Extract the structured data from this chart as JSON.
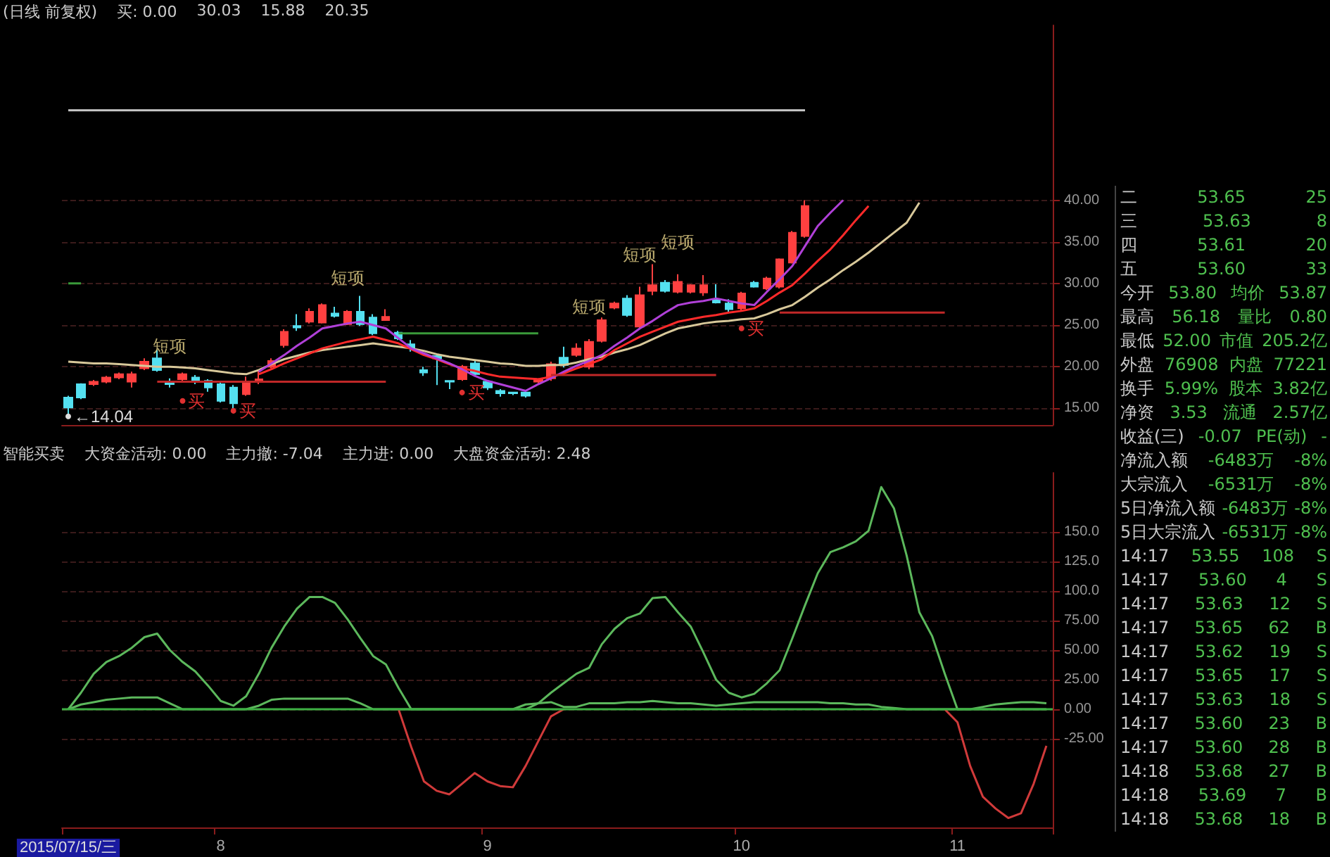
{
  "chart_data": [
    {
      "type": "candlestick",
      "title": "(日线 前复权)",
      "annotations": [
        "买: 0.00",
        "30.03",
        "15.88",
        "20.35"
      ],
      "categories": [
        null,
        null,
        null,
        null,
        null,
        null,
        null,
        null,
        null,
        null,
        null,
        null,
        null,
        null,
        null,
        null,
        null,
        null,
        null,
        null,
        null,
        null,
        null,
        null,
        null,
        null,
        null,
        null,
        null,
        null,
        null,
        null,
        null,
        null,
        null,
        null,
        null,
        null,
        null,
        null,
        null,
        null,
        null,
        null,
        null,
        null,
        null,
        null,
        null,
        null,
        null,
        null,
        null,
        null,
        null,
        null,
        null,
        null,
        null,
        null,
        null,
        null,
        null,
        null,
        null,
        null,
        null,
        null,
        null,
        null,
        null,
        null,
        null,
        null,
        null,
        null,
        null,
        null
      ],
      "colors": [
        "#54e0f0",
        "#54e0f0",
        "#ff4040",
        "#ff4040",
        "#ff4040",
        "#ff4040",
        "#ff4040",
        "#54e0f0",
        "#54e0f0",
        "#ff4040",
        "#54e0f0",
        "#54e0f0",
        "#54e0f0",
        "#54e0f0",
        "#ff4040",
        "#ff4040",
        "#ff4040",
        "#ff4040",
        "#54e0f0",
        "#ff4040",
        "#ff4040",
        "#54e0f0",
        "#ff4040",
        "#54e0f0",
        "#54e0f0",
        "#ff4040",
        "#54e0f0",
        "#54e0f0",
        "#54e0f0",
        "#54e0f0",
        "#54e0f0",
        "#ff4040",
        "#54e0f0",
        "#54e0f0",
        "#54e0f0",
        "#54e0f0",
        "#54e0f0",
        "#ff4040",
        "#ff4040",
        "#54e0f0",
        "#ff4040",
        "#ff4040",
        "#ff4040",
        "#ff4040",
        "#54e0f0",
        "#ff4040",
        "#ff4040",
        "#54e0f0",
        "#ff4040",
        "#ff4040",
        "#ff4040",
        "#54e0f0",
        "#54e0f0",
        "#ff4040",
        "#54e0f0",
        "#ff4040",
        "#ff4040",
        "#ff4040",
        "#ff4040",
        null,
        null,
        null,
        null,
        null,
        null,
        null,
        null,
        null,
        null,
        null,
        null,
        null,
        null,
        null,
        null,
        null,
        null,
        null
      ],
      "ohlc": [
        [
          16.3,
          16.5,
          14.04,
          15.1
        ],
        [
          17.9,
          18.0,
          16.1,
          16.3
        ],
        [
          17.9,
          18.4,
          17.7,
          18.2
        ],
        [
          18.2,
          18.9,
          18.0,
          18.7
        ],
        [
          18.7,
          19.3,
          18.5,
          19.1
        ],
        [
          18.2,
          19.4,
          17.5,
          19.1
        ],
        [
          19.8,
          21.0,
          19.6,
          20.6
        ],
        [
          21.0,
          22.0,
          19.4,
          19.6
        ],
        [
          18.2,
          18.6,
          17.5,
          17.9
        ],
        [
          18.5,
          19.3,
          18.3,
          19.1
        ],
        [
          18.7,
          19.0,
          17.9,
          18.2
        ],
        [
          18.3,
          18.5,
          17.0,
          17.5
        ],
        [
          17.9,
          18.3,
          15.7,
          15.9
        ],
        [
          17.5,
          17.8,
          14.9,
          15.6
        ],
        [
          16.7,
          18.8,
          16.5,
          18.2
        ],
        [
          18.2,
          19.5,
          17.9,
          18.5
        ],
        [
          20.0,
          21.0,
          19.8,
          20.7
        ],
        [
          22.6,
          24.5,
          22.3,
          24.2
        ],
        [
          24.9,
          26.3,
          24.3,
          24.7
        ],
        [
          25.4,
          27.0,
          25.2,
          26.6
        ],
        [
          25.3,
          27.6,
          25.2,
          27.4
        ],
        [
          26.4,
          27.2,
          25.9,
          26.1
        ],
        [
          25.1,
          26.8,
          25.0,
          26.6
        ],
        [
          26.6,
          28.5,
          24.9,
          25.1
        ],
        [
          25.9,
          26.3,
          23.8,
          24.0
        ],
        [
          25.6,
          26.9,
          25.5,
          26.0
        ],
        [
          24.1,
          24.3,
          23.2,
          23.4
        ],
        [
          22.7,
          23.2,
          21.8,
          22.3
        ],
        [
          19.6,
          20.0,
          18.9,
          19.3
        ],
        [
          21.3,
          21.5,
          17.8,
          21.0
        ],
        [
          18.3,
          18.3,
          17.3,
          18.2
        ],
        [
          18.5,
          20.2,
          18.3,
          20.0
        ],
        [
          20.4,
          20.7,
          18.8,
          19.1
        ],
        [
          18.2,
          18.4,
          17.2,
          17.5
        ],
        [
          17.1,
          17.3,
          16.4,
          16.8
        ],
        [
          16.9,
          17.0,
          16.6,
          16.8
        ],
        [
          16.9,
          17.0,
          16.3,
          16.5
        ],
        [
          18.2,
          18.6,
          18.0,
          18.5
        ],
        [
          18.6,
          20.6,
          18.3,
          20.3
        ],
        [
          21.1,
          22.4,
          19.9,
          20.2
        ],
        [
          21.4,
          22.8,
          21.2,
          22.2
        ],
        [
          20.0,
          23.3,
          19.7,
          23.0
        ],
        [
          23.1,
          25.9,
          22.9,
          25.6
        ],
        [
          27.1,
          27.8,
          26.9,
          27.6
        ],
        [
          28.2,
          28.6,
          26.0,
          26.2
        ],
        [
          24.8,
          29.6,
          24.6,
          28.6
        ],
        [
          29.1,
          32.3,
          28.6,
          29.8
        ],
        [
          30.1,
          30.4,
          28.9,
          29.1
        ],
        [
          29.0,
          31.1,
          28.8,
          30.2
        ],
        [
          29.0,
          29.9,
          28.8,
          29.8
        ],
        [
          28.9,
          31.0,
          28.5,
          29.8
        ],
        [
          28.1,
          29.9,
          27.6,
          27.7
        ],
        [
          27.6,
          28.1,
          26.5,
          26.9
        ],
        [
          27.0,
          29.0,
          26.6,
          28.8
        ],
        [
          30.1,
          30.3,
          29.5,
          29.6
        ],
        [
          29.4,
          30.8,
          29.2,
          30.6
        ],
        [
          29.6,
          33.0,
          29.4,
          32.9
        ],
        [
          32.5,
          36.3,
          32.4,
          36.1
        ],
        [
          35.7,
          40.0,
          35.5,
          39.3
        ],
        null,
        null,
        null,
        null,
        null,
        null,
        null,
        null,
        null,
        null,
        null,
        null,
        null,
        null,
        null,
        null,
        null,
        null,
        null
      ],
      "value_labels": [
        null,
        null,
        null,
        null,
        null,
        null,
        null,
        null,
        "短项",
        null,
        null,
        null,
        null,
        null,
        null,
        null,
        null,
        null,
        null,
        null,
        null,
        null,
        "短项",
        null,
        null,
        null,
        null,
        null,
        null,
        null,
        null,
        null,
        null,
        null,
        null,
        null,
        null,
        null,
        null,
        null,
        null,
        "短项",
        null,
        null,
        null,
        "短项",
        null,
        null,
        "短项",
        null,
        null,
        null,
        null,
        null,
        null,
        null,
        null,
        null,
        null,
        null,
        null,
        null,
        null,
        null,
        null,
        null,
        null,
        null,
        null,
        null,
        null,
        null,
        null,
        null,
        null,
        null,
        null,
        null
      ],
      "series": [
        {
          "type": "line",
          "color": "#d8c89a",
          "values": [
            20.6,
            20.5,
            20.4,
            20.4,
            20.3,
            20.2,
            20.1,
            20.0,
            20.0,
            19.9,
            19.8,
            19.6,
            19.4,
            19.2,
            19.1,
            19.6,
            20.3,
            20.9,
            21.3,
            21.7,
            22.0,
            22.2,
            22.4,
            22.6,
            22.8,
            22.6,
            22.4,
            22.2,
            21.9,
            21.5,
            21.2,
            21.0,
            20.8,
            20.6,
            20.4,
            20.3,
            20.1,
            20.1,
            20.2,
            20.2,
            20.5,
            20.9,
            21.2,
            21.7,
            22.1,
            22.6,
            23.3,
            24.0,
            24.6,
            24.9,
            25.2,
            25.4,
            25.5,
            25.7,
            25.8,
            26.3,
            26.9,
            27.4,
            28.4,
            29.5,
            30.5,
            31.6,
            32.6,
            33.7,
            34.9,
            36.1,
            37.3,
            39.7,
            null,
            null,
            null,
            null,
            null,
            null,
            null,
            null,
            null,
            null
          ]
        },
        {
          "type": "line",
          "color": "#ff2a2a",
          "values": [
            null,
            null,
            null,
            null,
            null,
            null,
            null,
            null,
            null,
            null,
            null,
            null,
            null,
            null,
            null,
            19.1,
            19.7,
            20.4,
            21.0,
            21.6,
            22.2,
            22.6,
            23.0,
            23.3,
            23.6,
            23.2,
            22.8,
            22.1,
            21.4,
            20.9,
            20.3,
            19.8,
            19.5,
            19.1,
            18.8,
            18.7,
            18.6,
            18.5,
            18.8,
            19.2,
            19.8,
            20.3,
            20.9,
            22.0,
            22.8,
            23.6,
            24.2,
            24.8,
            25.4,
            25.7,
            26.0,
            26.2,
            26.5,
            26.7,
            27.0,
            27.9,
            28.9,
            29.8,
            31.2,
            32.7,
            34.1,
            35.8,
            37.6,
            39.3,
            null,
            null,
            null,
            null,
            null,
            null,
            null,
            null,
            null,
            null,
            null,
            null,
            null,
            null
          ]
        },
        {
          "type": "line",
          "color": "#b040d8",
          "values": [
            null,
            null,
            null,
            null,
            null,
            null,
            null,
            null,
            null,
            null,
            null,
            null,
            null,
            null,
            null,
            19.4,
            20.4,
            21.4,
            22.5,
            23.5,
            24.6,
            24.9,
            25.2,
            25.4,
            25.0,
            24.6,
            23.4,
            22.2,
            21.6,
            21.0,
            20.4,
            19.7,
            18.9,
            18.3,
            17.9,
            17.5,
            17.1,
            17.9,
            18.6,
            19.4,
            20.1,
            20.7,
            21.4,
            22.5,
            23.5,
            24.6,
            25.5,
            26.5,
            27.4,
            27.7,
            27.9,
            28.2,
            27.9,
            27.6,
            27.4,
            29.0,
            30.5,
            32.1,
            34.5,
            36.9,
            38.5,
            40.0,
            null,
            null,
            null,
            null,
            null,
            null,
            null,
            null,
            null,
            null,
            null,
            null,
            null,
            null,
            null,
            null
          ]
        },
        {
          "type": "line",
          "color": "#c8c8c8",
          "values": [
            50.8,
            50.8,
            50.8,
            50.8,
            50.8,
            50.8,
            50.8,
            50.8,
            50.8,
            50.8,
            50.8,
            50.8,
            50.8,
            50.8,
            50.8,
            50.8,
            50.8,
            50.8,
            50.8,
            50.8,
            50.8,
            50.8,
            50.8,
            50.8,
            50.8,
            50.8,
            50.8,
            50.8,
            50.8,
            50.8,
            50.8,
            50.8,
            50.8,
            50.8,
            50.8,
            50.8,
            50.8,
            50.8,
            50.8,
            50.8,
            50.8,
            50.8,
            50.8,
            50.8,
            50.8,
            50.8,
            50.8,
            50.8,
            50.8,
            50.8,
            50.8,
            50.8,
            50.8,
            50.8,
            50.8,
            50.8,
            50.8,
            50.8,
            50.8,
            null,
            null,
            null,
            null,
            null,
            null,
            null,
            null,
            null,
            null,
            null,
            null,
            null,
            null,
            null,
            null,
            null,
            null,
            null
          ]
        },
        {
          "type": "line",
          "color": "#c02828",
          "values": [
            null,
            null,
            null,
            null,
            null,
            null,
            null,
            18.2,
            18.2,
            18.2,
            18.2,
            18.2,
            18.2,
            18.2,
            18.2,
            18.2,
            18.2,
            18.2,
            18.2,
            18.2,
            18.2,
            18.2,
            18.2,
            18.2,
            18.2,
            18.2,
            null,
            null,
            null,
            null,
            null,
            null,
            null,
            null,
            null,
            null,
            null,
            null,
            19.0,
            19.0,
            19.0,
            19.0,
            19.0,
            19.0,
            19.0,
            19.0,
            19.0,
            19.0,
            19.0,
            19.0,
            19.0,
            19.0,
            null,
            null,
            null,
            null,
            26.5,
            26.5,
            26.5,
            26.5,
            26.5,
            26.5,
            26.5,
            26.5,
            26.5,
            26.5,
            26.5,
            26.5,
            26.5,
            26.5,
            null,
            null,
            null,
            null,
            null,
            null,
            null,
            null
          ]
        },
        {
          "type": "line",
          "color": "#3a9a3a",
          "values": [
            30.0,
            30.0,
            null,
            null,
            null,
            null,
            null,
            null,
            null,
            null,
            null,
            null,
            null,
            null,
            null,
            null,
            null,
            null,
            null,
            null,
            null,
            null,
            null,
            null,
            null,
            null,
            24.0,
            24.0,
            24.0,
            24.0,
            24.0,
            24.0,
            24.0,
            24.0,
            24.0,
            24.0,
            24.0,
            24.0,
            null,
            null,
            null,
            null,
            null,
            null,
            null,
            null,
            null,
            null,
            null,
            null,
            null,
            null,
            null,
            null,
            null,
            null,
            null,
            null,
            null,
            null,
            null,
            null,
            null,
            null,
            null,
            null,
            null,
            null,
            null,
            null,
            null,
            null,
            null,
            null,
            null,
            null,
            null,
            null
          ]
        },
        {
          "type": "scatter",
          "color": "#e03030",
          "marker": "circle",
          "values": [
            null,
            null,
            null,
            null,
            null,
            null,
            null,
            null,
            null,
            15.9,
            null,
            null,
            null,
            14.7,
            null,
            null,
            null,
            null,
            null,
            null,
            null,
            null,
            null,
            null,
            null,
            null,
            null,
            null,
            null,
            null,
            null,
            16.9,
            null,
            null,
            null,
            null,
            null,
            null,
            null,
            null,
            null,
            null,
            null,
            null,
            null,
            null,
            null,
            null,
            null,
            null,
            null,
            null,
            null,
            24.6,
            null,
            null,
            null,
            null,
            null,
            null,
            null,
            null,
            null,
            null,
            null,
            null,
            null,
            null,
            null,
            null,
            null,
            null,
            null,
            null,
            null,
            null,
            null,
            null
          ],
          "value_labels": [
            null,
            null,
            null,
            null,
            null,
            null,
            null,
            null,
            null,
            "买",
            null,
            null,
            null,
            "买",
            null,
            null,
            null,
            null,
            null,
            null,
            null,
            null,
            null,
            null,
            null,
            null,
            null,
            null,
            null,
            null,
            null,
            "买",
            null,
            null,
            null,
            null,
            null,
            null,
            null,
            null,
            null,
            null,
            null,
            null,
            null,
            null,
            null,
            null,
            null,
            null,
            null,
            null,
            null,
            "买",
            null,
            null,
            null,
            null,
            null,
            null,
            null,
            null,
            null,
            null,
            null,
            null,
            null,
            null,
            null,
            null,
            null,
            null,
            null,
            null,
            null,
            null,
            null,
            null
          ]
        },
        {
          "type": "scatter",
          "color": "#dddddd",
          "marker": "circle",
          "values": [
            14.04,
            null,
            null,
            null,
            null,
            null,
            null,
            null,
            null,
            null,
            null,
            null,
            null,
            null,
            null,
            null,
            null,
            null,
            null,
            null,
            null,
            null,
            null,
            null,
            null,
            null,
            null,
            null,
            null,
            null,
            null,
            null,
            null,
            null,
            null,
            null,
            null,
            null,
            null,
            null,
            null,
            null,
            null,
            null,
            null,
            null,
            null,
            null,
            null,
            null,
            null,
            null,
            null,
            null,
            null,
            null,
            null,
            null,
            null,
            null,
            null,
            null,
            null,
            null,
            null,
            null,
            null,
            null,
            null,
            null,
            null,
            null,
            null,
            null,
            null,
            null,
            null,
            null
          ],
          "value_labels": [
            "←14.04",
            null,
            null,
            null,
            null,
            null,
            null,
            null,
            null,
            null,
            null,
            null,
            null,
            null,
            null,
            null,
            null,
            null,
            null,
            null,
            null,
            null,
            null,
            null,
            null,
            null,
            null,
            null,
            null,
            null,
            null,
            null,
            null,
            null,
            null,
            null,
            null,
            null,
            null,
            null,
            null,
            null,
            null,
            null,
            null,
            null,
            null,
            null,
            null,
            null,
            null,
            null,
            null,
            null,
            null,
            null,
            null,
            null,
            null,
            null,
            null,
            null,
            null,
            null,
            null,
            null,
            null,
            null,
            null,
            null,
            null,
            null,
            null,
            null,
            null,
            null,
            null,
            null
          ]
        }
      ],
      "marker": "none",
      "ylim": [
        13,
        61
      ],
      "yticks": [
        {
          "value": 15,
          "label": "15.00"
        },
        {
          "value": 20,
          "label": "20.00"
        },
        {
          "value": 25,
          "label": "25.00"
        },
        {
          "value": 30,
          "label": "30.00"
        },
        {
          "value": 35,
          "label": "35.00"
        },
        {
          "value": 40,
          "label": "40.00"
        }
      ],
      "grid": "y",
      "tick_labels": "y"
    },
    {
      "type": "line",
      "title": "智能买卖",
      "annotations": [
        "大资金活动: 0.00",
        "主力撤: -7.04",
        "主力进: 0.00",
        "大盘资金活动: 2.48"
      ],
      "categories": [
        "2015/07/15/三",
        null,
        null,
        null,
        null,
        null,
        null,
        null,
        null,
        null,
        null,
        null,
        "8",
        null,
        null,
        null,
        null,
        null,
        null,
        null,
        null,
        null,
        null,
        null,
        null,
        null,
        null,
        null,
        null,
        null,
        null,
        null,
        null,
        "9",
        null,
        null,
        null,
        null,
        null,
        null,
        null,
        null,
        null,
        null,
        null,
        null,
        null,
        null,
        null,
        null,
        null,
        null,
        null,
        "10",
        null,
        null,
        null,
        null,
        null,
        null,
        null,
        null,
        null,
        null,
        null,
        null,
        null,
        null,
        null,
        null,
        "11",
        null,
        null,
        null,
        null,
        null,
        null,
        null
      ],
      "series": [
        {
          "color": "#5cb85c",
          "values": [
            0,
            14,
            30,
            40,
            45,
            52,
            61,
            64,
            50,
            40,
            32,
            20,
            7,
            3,
            11,
            30,
            52,
            70,
            85,
            95,
            95,
            90,
            76,
            60,
            45,
            38,
            18,
            0,
            0,
            0,
            0,
            0,
            0,
            0,
            0,
            0,
            0,
            5,
            14,
            22,
            30,
            35,
            55,
            68,
            77,
            81,
            94,
            95,
            82,
            70,
            48,
            25,
            14,
            10,
            13,
            22,
            33,
            60,
            88,
            115,
            133,
            137,
            142,
            151,
            188,
            170,
            130,
            82,
            62,
            30,
            0,
            0,
            0,
            0,
            0,
            0,
            0,
            0
          ]
        },
        {
          "color": "#5cb85c",
          "values": [
            0,
            4,
            6,
            8,
            9,
            10,
            10,
            10,
            5,
            0,
            0,
            0,
            0,
            0,
            0,
            3,
            8,
            9,
            9,
            9,
            9,
            9,
            9,
            5,
            0,
            0,
            0,
            0,
            0,
            0,
            0,
            0,
            0,
            0,
            0,
            0,
            4,
            5,
            6,
            2,
            2,
            5,
            5,
            5,
            6,
            6,
            7,
            6,
            5,
            5,
            4,
            3,
            4,
            5,
            6,
            6,
            6,
            6,
            6,
            6,
            5,
            5,
            4,
            4,
            2,
            1,
            0,
            0,
            0,
            0,
            0,
            0,
            2,
            4,
            5,
            6,
            6,
            5
          ]
        },
        {
          "color": "#d03a3a",
          "values": [
            null,
            null,
            null,
            null,
            null,
            null,
            null,
            null,
            null,
            null,
            null,
            null,
            null,
            null,
            null,
            null,
            null,
            null,
            null,
            null,
            null,
            null,
            null,
            null,
            null,
            null,
            0,
            -32,
            -61,
            -69,
            -72,
            -63,
            -54,
            -61,
            -65,
            -66,
            -48,
            -27,
            -6,
            0,
            null,
            null,
            null,
            null,
            null,
            null,
            null,
            null,
            null,
            null,
            null,
            null,
            null,
            null,
            null,
            null,
            null,
            null,
            null,
            null,
            null,
            null,
            null,
            null,
            null,
            null,
            null,
            null,
            null,
            0,
            -11,
            -48,
            -74,
            -84,
            -92,
            -88,
            -63,
            -31
          ]
        }
      ],
      "ref_lines": [
        {
          "axis": "y",
          "value": 0,
          "color": "#3cb043"
        }
      ],
      "marker": "none",
      "ylim": [
        -100,
        200
      ],
      "yticks": [
        {
          "value": -25,
          "label": "-25.00"
        },
        {
          "value": 0,
          "label": "0.00"
        },
        {
          "value": 25,
          "label": "25.00"
        },
        {
          "value": 50,
          "label": "50.00"
        },
        {
          "value": 75,
          "label": "75.00"
        },
        {
          "value": 100,
          "label": "100.0"
        },
        {
          "value": 125,
          "label": "125.0"
        },
        {
          "value": 150,
          "label": "150.0"
        }
      ],
      "grid": "y"
    },
    {
      "type": "other",
      "annotations": [
        "二 53.65 25",
        "三 53.63 8",
        "四 53.61 20",
        "五 53.60 33",
        "今开 53.80 均价 53.87",
        "最高 56.18 量比 0.80",
        "最低 52.00 市值 205.2亿",
        "外盘 76908 内盘 77221",
        "换手 5.99% 股本 3.82亿",
        "净资 3.53 流通 2.57亿",
        "收益(三) -0.07 PE(动) -",
        "净流入额 -6483万 -8%",
        "大宗流入 -6531万 -8%",
        "5日净流入额 -6483万 -8%",
        "5日大宗流入 -6531万 -8%",
        "14:17 53.55 108 S",
        "14:17 53.60 4 S",
        "14:17 53.63 12 S",
        "14:17 53.65 62 B",
        "14:17 53.62 19 S",
        "14:17 53.65 17 S",
        "14:17 53.63 18 S",
        "14:17 53.60 23 B",
        "14:17 53.60 28 B",
        "14:18 53.68 27 B",
        "14:18 53.69 7 B",
        "14:18 53.68 18 B"
      ]
    }
  ]
}
